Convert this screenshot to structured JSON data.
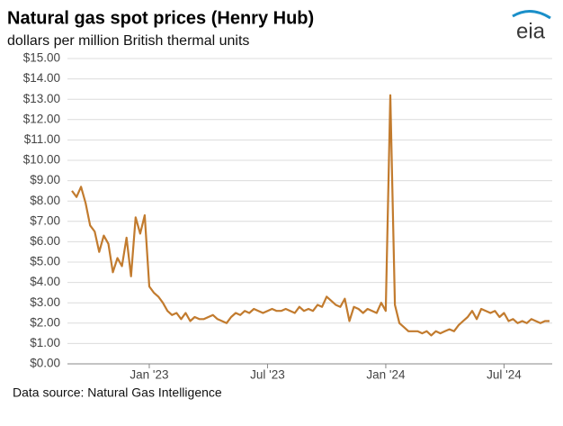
{
  "chart_data": {
    "type": "line",
    "title": "Natural gas spot prices (Henry Hub)",
    "subtitle": "dollars per million British thermal units",
    "source": "Data source: Natural Gas Intelligence",
    "logo": "eia",
    "categories": [
      null,
      null,
      null,
      null,
      null,
      null,
      null,
      null,
      null,
      null,
      null,
      null,
      null,
      null,
      null,
      null,
      null,
      "Jan '23",
      null,
      null,
      null,
      null,
      null,
      null,
      null,
      null,
      null,
      null,
      null,
      null,
      null,
      null,
      null,
      null,
      null,
      null,
      null,
      null,
      null,
      null,
      null,
      null,
      null,
      "Jul '23",
      null,
      null,
      null,
      null,
      null,
      null,
      null,
      null,
      null,
      null,
      null,
      null,
      null,
      null,
      null,
      null,
      null,
      null,
      null,
      null,
      null,
      null,
      null,
      null,
      null,
      "Jan '24",
      null,
      null,
      null,
      null,
      null,
      null,
      null,
      null,
      null,
      null,
      null,
      null,
      null,
      null,
      null,
      null,
      null,
      null,
      null,
      null,
      null,
      null,
      null,
      null,
      null,
      "Jul '24",
      null,
      null,
      null,
      null,
      null,
      null,
      null,
      null,
      null,
      null
    ],
    "series": [
      {
        "name": "Henry Hub",
        "color": "#c27b2e",
        "values": [
          8.5,
          8.2,
          8.7,
          7.9,
          6.8,
          6.5,
          5.5,
          6.3,
          5.9,
          4.5,
          5.2,
          4.8,
          6.2,
          4.3,
          7.2,
          6.4,
          7.3,
          3.8,
          3.5,
          3.3,
          3.0,
          2.6,
          2.4,
          2.5,
          2.2,
          2.5,
          2.1,
          2.3,
          2.2,
          2.2,
          2.3,
          2.4,
          2.2,
          2.1,
          2.0,
          2.3,
          2.5,
          2.4,
          2.6,
          2.5,
          2.7,
          2.6,
          2.5,
          2.6,
          2.7,
          2.6,
          2.6,
          2.7,
          2.6,
          2.5,
          2.8,
          2.6,
          2.7,
          2.6,
          2.9,
          2.8,
          3.3,
          3.1,
          2.9,
          2.8,
          3.2,
          2.1,
          2.8,
          2.7,
          2.5,
          2.7,
          2.6,
          2.5,
          3.0,
          2.6,
          13.2,
          2.9,
          2.0,
          1.8,
          1.6,
          1.6,
          1.6,
          1.5,
          1.6,
          1.4,
          1.6,
          1.5,
          1.6,
          1.7,
          1.6,
          1.9,
          2.1,
          2.3,
          2.6,
          2.2,
          2.7,
          2.6,
          2.5,
          2.6,
          2.3,
          2.5,
          2.1,
          2.2,
          2.0,
          2.1,
          2.0,
          2.2,
          2.1,
          2.0,
          2.1,
          2.1
        ]
      }
    ],
    "ylim": [
      0,
      15
    ],
    "yticks": [
      {
        "value": 0,
        "label": "$0.00"
      },
      {
        "value": 1,
        "label": "$1.00"
      },
      {
        "value": 2,
        "label": "$2.00"
      },
      {
        "value": 3,
        "label": "$3.00"
      },
      {
        "value": 4,
        "label": "$4.00"
      },
      {
        "value": 5,
        "label": "$5.00"
      },
      {
        "value": 6,
        "label": "$6.00"
      },
      {
        "value": 7,
        "label": "$7.00"
      },
      {
        "value": 8,
        "label": "$8.00"
      },
      {
        "value": 9,
        "label": "$9.00"
      },
      {
        "value": 10,
        "label": "$10.00"
      },
      {
        "value": 11,
        "label": "$11.00"
      },
      {
        "value": 12,
        "label": "$12.00"
      },
      {
        "value": 13,
        "label": "$13.00"
      },
      {
        "value": 14,
        "label": "$14.00"
      },
      {
        "value": 15,
        "label": "$15.00"
      }
    ],
    "grid": true
  }
}
